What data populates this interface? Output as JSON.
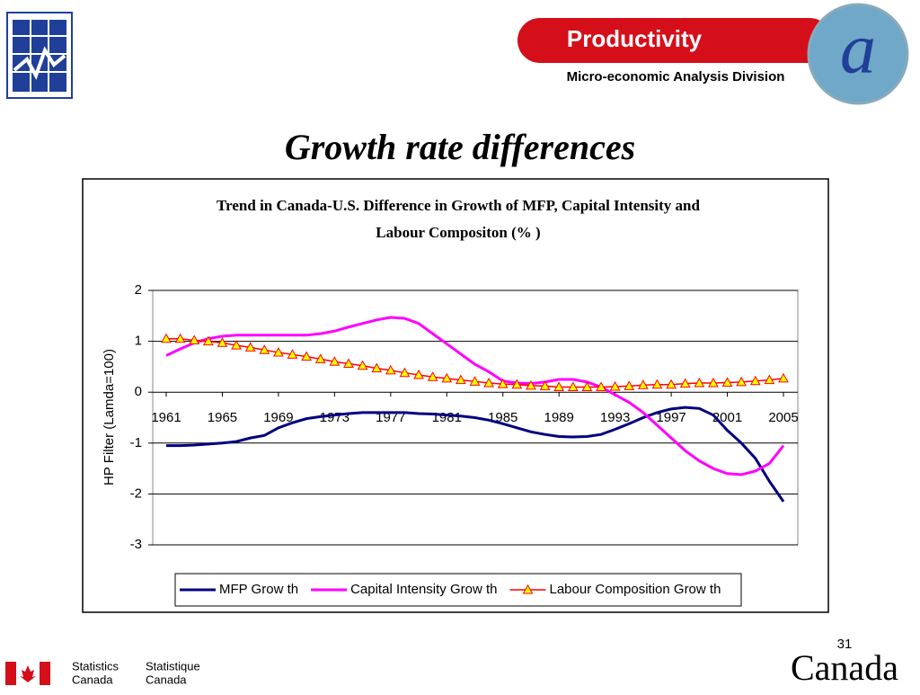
{
  "header": {
    "brand": "Productivity",
    "division": "Micro-economic Analysis Division"
  },
  "slide_title": "Growth rate differences",
  "page_number": "31",
  "footer": {
    "en": [
      "Statistics",
      "Canada"
    ],
    "fr": [
      "Statistique",
      "Canada"
    ],
    "wordmark": "Canada"
  },
  "chart_data": {
    "type": "line",
    "title": [
      "Trend in Canada-U.S. Difference in Growth of MFP, Capital Intensity and",
      "Labour Compositon (% )"
    ],
    "y_label": "HP Filter (Lamda=100)",
    "categories": [
      "1961",
      null,
      null,
      null,
      "1965",
      null,
      null,
      null,
      "1969",
      null,
      null,
      null,
      "1973",
      null,
      null,
      null,
      "1977",
      null,
      null,
      null,
      "1981",
      null,
      null,
      null,
      "1985",
      null,
      null,
      null,
      "1989",
      null,
      null,
      null,
      "1993",
      null,
      null,
      null,
      "1997",
      null,
      null,
      null,
      "2001",
      null,
      null,
      null,
      "2005"
    ],
    "ylim": [
      -3,
      2
    ],
    "yticks": [
      -3,
      -2,
      -1,
      0,
      1,
      2
    ],
    "grid": true,
    "legend": "bottom",
    "series": [
      {
        "name": "MFP Grow th",
        "color": "#000080",
        "values": [
          -1.05,
          -1.05,
          -1.04,
          -1.02,
          -1.0,
          -0.97,
          -0.9,
          -0.85,
          -0.7,
          -0.6,
          -0.52,
          -0.48,
          -0.45,
          -0.42,
          -0.4,
          -0.4,
          -0.4,
          -0.4,
          -0.42,
          -0.43,
          -0.45,
          -0.47,
          -0.5,
          -0.55,
          -0.62,
          -0.7,
          -0.78,
          -0.83,
          -0.87,
          -0.88,
          -0.87,
          -0.83,
          -0.73,
          -0.62,
          -0.5,
          -0.4,
          -0.33,
          -0.3,
          -0.32,
          -0.45,
          -0.75,
          -1.0,
          -1.3,
          -1.75,
          -2.15
        ]
      },
      {
        "name": "Capital Intensity Grow th",
        "color": "#ff00ff",
        "values": [
          0.72,
          0.85,
          0.97,
          1.05,
          1.1,
          1.12,
          1.12,
          1.12,
          1.12,
          1.12,
          1.12,
          1.15,
          1.2,
          1.28,
          1.35,
          1.42,
          1.47,
          1.45,
          1.35,
          1.15,
          0.95,
          0.75,
          0.55,
          0.4,
          0.22,
          0.18,
          0.17,
          0.2,
          0.25,
          0.25,
          0.2,
          0.1,
          -0.05,
          -0.2,
          -0.4,
          -0.65,
          -0.9,
          -1.15,
          -1.35,
          -1.5,
          -1.6,
          -1.62,
          -1.55,
          -1.4,
          -1.05
        ]
      },
      {
        "name": "Labour Composition Grow th",
        "color": "#ff0000",
        "marker": "triangle",
        "marker_color": "#ffff00",
        "values": [
          1.05,
          1.05,
          1.02,
          1.0,
          0.97,
          0.92,
          0.88,
          0.83,
          0.78,
          0.74,
          0.7,
          0.65,
          0.6,
          0.56,
          0.52,
          0.47,
          0.43,
          0.38,
          0.34,
          0.3,
          0.27,
          0.24,
          0.21,
          0.18,
          0.16,
          0.15,
          0.13,
          0.12,
          0.1,
          0.1,
          0.1,
          0.1,
          0.11,
          0.12,
          0.14,
          0.15,
          0.15,
          0.17,
          0.18,
          0.18,
          0.19,
          0.2,
          0.22,
          0.24,
          0.27
        ]
      }
    ]
  }
}
